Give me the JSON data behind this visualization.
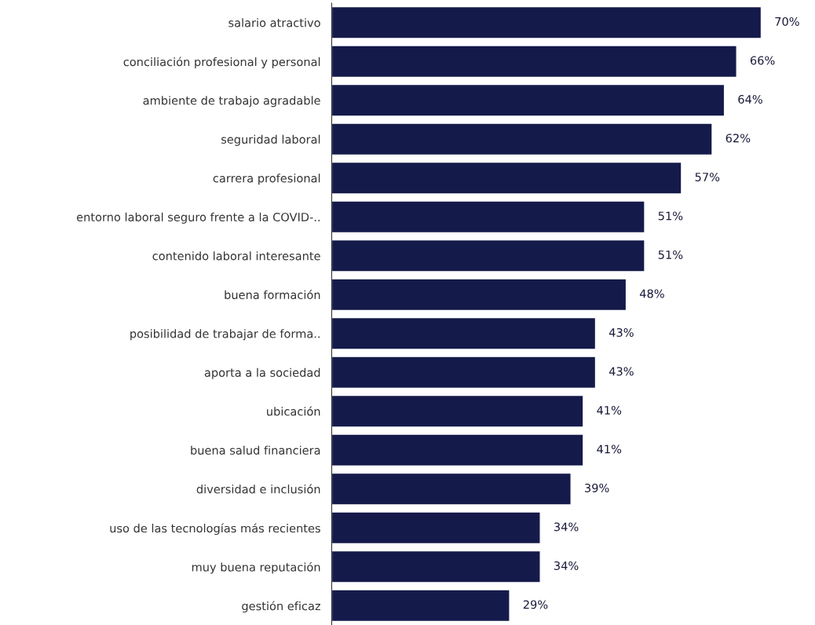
{
  "chart_data": {
    "type": "bar",
    "orientation": "horizontal",
    "categories": [
      "salario atractivo",
      "conciliación profesional y personal",
      "ambiente de trabajo agradable",
      "seguridad laboral",
      "carrera profesional",
      "entorno laboral seguro frente a la COVID-..",
      "contenido laboral interesante",
      "buena formación",
      "posibilidad de trabajar de forma..",
      "aporta a la sociedad",
      "ubicación",
      "buena salud financiera",
      "diversidad e inclusión",
      "uso de las tecnologías más recientes",
      "muy buena reputación",
      "gestión eficaz"
    ],
    "values": [
      70,
      66,
      64,
      62,
      57,
      51,
      51,
      48,
      43,
      43,
      41,
      41,
      39,
      34,
      34,
      29
    ],
    "value_labels": [
      "70%",
      "66%",
      "64%",
      "62%",
      "57%",
      "51%",
      "51%",
      "48%",
      "43%",
      "43%",
      "41%",
      "41%",
      "39%",
      "34%",
      "34%",
      "29%"
    ],
    "color": "#141a4a",
    "grid": false,
    "legend": false
  }
}
